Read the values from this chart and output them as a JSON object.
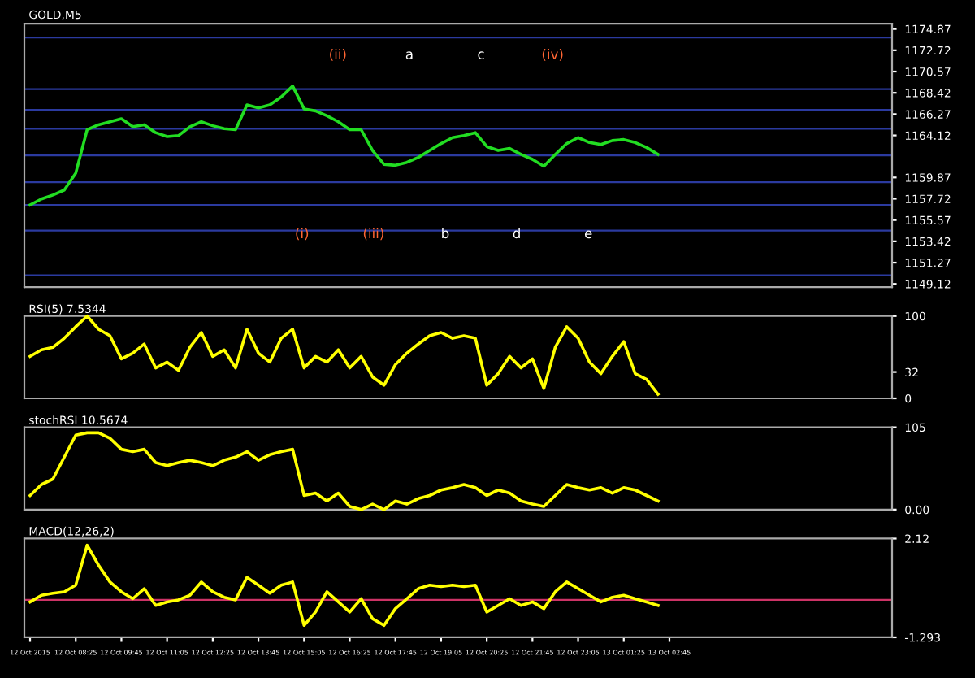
{
  "chart_data": [
    {
      "type": "line",
      "title": "GOLD,M5",
      "categories": [
        null,
        null,
        null,
        null,
        null,
        null,
        null,
        null,
        null,
        null,
        null,
        null,
        null,
        null,
        null,
        null,
        null,
        null,
        null,
        null,
        null,
        null,
        null,
        null,
        null,
        null,
        null,
        null,
        null,
        null,
        null,
        null,
        null,
        null,
        null,
        null,
        null,
        null,
        null,
        null,
        null,
        null,
        null,
        null,
        null,
        null,
        null,
        null,
        null,
        null,
        null,
        null,
        null,
        null,
        null,
        null,
        null,
        null,
        null,
        null,
        null,
        null,
        null,
        null,
        null,
        null,
        null,
        null,
        null,
        null,
        null,
        null,
        null,
        null,
        null,
        null
      ],
      "series": [
        {
          "color": "#22dd22",
          "values": [
            1157.1,
            1157.7,
            1158.1,
            1158.6,
            1160.3,
            1164.7,
            1165.2,
            1165.5,
            1165.8,
            1165.0,
            1165.2,
            1164.4,
            1164.0,
            1164.1,
            1165.0,
            1165.5,
            1165.1,
            1164.8,
            1164.7,
            1167.2,
            1166.9,
            1167.2,
            1168.0,
            1169.1,
            1166.8,
            1166.6,
            1166.1,
            1165.5,
            1164.7,
            1164.7,
            1162.6,
            1161.2,
            1161.1,
            1161.4,
            1161.9,
            1162.6,
            1163.3,
            1163.9,
            1164.1,
            1164.4,
            1163.0,
            1162.6,
            1162.8,
            1162.2,
            1161.7,
            1161.0,
            1162.2,
            1163.3,
            1163.9,
            1163.4,
            1163.2,
            1163.6,
            1163.7,
            1163.4,
            1162.9,
            1162.2,
            null,
            null,
            null,
            null,
            null,
            null,
            null,
            null,
            null,
            null,
            null,
            null,
            null,
            null,
            null,
            null,
            null,
            null,
            null,
            null
          ]
        }
      ],
      "ylim": [
        1148.8,
        1175.4
      ],
      "yticks": [
        1174.87,
        1172.72,
        1170.57,
        1168.42,
        1166.27,
        1164.12,
        1159.87,
        1157.72,
        1155.57,
        1153.42,
        1151.27,
        1149.12
      ],
      "ref_lines": [
        {
          "axis": "y",
          "value": 1174.0,
          "color": "#2b3a9f"
        },
        {
          "axis": "y",
          "value": 1168.8,
          "color": "#2b3a9f"
        },
        {
          "axis": "y",
          "value": 1166.7,
          "color": "#2b3a9f"
        },
        {
          "axis": "y",
          "value": 1164.8,
          "color": "#2b3a9f"
        },
        {
          "axis": "y",
          "value": 1162.1,
          "color": "#2b3a9f"
        },
        {
          "axis": "y",
          "value": 1159.4,
          "color": "#2b3a9f"
        },
        {
          "axis": "y",
          "value": 1157.1,
          "color": "#2b3a9f"
        },
        {
          "axis": "y",
          "value": 1154.5,
          "color": "#2b3a9f"
        },
        {
          "axis": "y",
          "value": 1150.0,
          "color": "#2b3a9f"
        }
      ],
      "annotations": [
        "(i)",
        "(ii)",
        "(iii)",
        "a",
        "b",
        "c",
        "d",
        "(iv)",
        "e"
      ],
      "grid": false,
      "tick_labels": "y"
    },
    {
      "type": "line",
      "title": "RSI(5) 7.5344",
      "categories": [
        null,
        null,
        null,
        null,
        null,
        null,
        null,
        null,
        null,
        null,
        null,
        null,
        null,
        null,
        null,
        null,
        null,
        null,
        null,
        null,
        null,
        null,
        null,
        null,
        null,
        null,
        null,
        null,
        null,
        null,
        null,
        null,
        null,
        null,
        null,
        null,
        null,
        null,
        null,
        null,
        null,
        null,
        null,
        null,
        null,
        null,
        null,
        null,
        null,
        null,
        null,
        null,
        null,
        null,
        null,
        null,
        null,
        null,
        null,
        null,
        null,
        null,
        null,
        null,
        null,
        null,
        null,
        null,
        null,
        null,
        null,
        null,
        null,
        null,
        null,
        null
      ],
      "series": [
        {
          "color": "#ffff00",
          "values": [
            51,
            59,
            62,
            73,
            87,
            100,
            84,
            76,
            48,
            55,
            66,
            37,
            44,
            34,
            62,
            80,
            51,
            59,
            37,
            84,
            55,
            44,
            73,
            84,
            37,
            51,
            44,
            59,
            37,
            51,
            26,
            16,
            41,
            55,
            66,
            76,
            80,
            73,
            76,
            73,
            16,
            30,
            51,
            37,
            48,
            12,
            62,
            87,
            73,
            44,
            30,
            51,
            69,
            30,
            23,
            5,
            null,
            null,
            null,
            null,
            null,
            null,
            null,
            null,
            null,
            null,
            null,
            null,
            null,
            null,
            null,
            null,
            null,
            null,
            null,
            null
          ]
        }
      ],
      "ylim": [
        0,
        100
      ],
      "yticks": [
        0,
        32,
        100
      ],
      "grid": false,
      "tick_labels": "y"
    },
    {
      "type": "line",
      "title": "stochRSI 10.5674",
      "categories": [
        null,
        null,
        null,
        null,
        null,
        null,
        null,
        null,
        null,
        null,
        null,
        null,
        null,
        null,
        null,
        null,
        null,
        null,
        null,
        null,
        null,
        null,
        null,
        null,
        null,
        null,
        null,
        null,
        null,
        null,
        null,
        null,
        null,
        null,
        null,
        null,
        null,
        null,
        null,
        null,
        null,
        null,
        null,
        null,
        null,
        null,
        null,
        null,
        null,
        null,
        null,
        null,
        null,
        null,
        null,
        null,
        null,
        null,
        null,
        null,
        null,
        null,
        null,
        null,
        null,
        null,
        null,
        null,
        null,
        null,
        null,
        null,
        null,
        null,
        null,
        null
      ],
      "series": [
        {
          "color": "#ffff00",
          "values": [
            18,
            32,
            39,
            67,
            95,
            98,
            98,
            91,
            77,
            74,
            77,
            60,
            56,
            60,
            63,
            60,
            56,
            63,
            67,
            74,
            63,
            70,
            74,
            77,
            18,
            21,
            11,
            21,
            4,
            0,
            7,
            0,
            11,
            7,
            14,
            18,
            25,
            28,
            32,
            28,
            18,
            25,
            21,
            11,
            7,
            4,
            18,
            32,
            28,
            25,
            28,
            21,
            28,
            25,
            18,
            11,
            null,
            null,
            null,
            null,
            null,
            null,
            null,
            null,
            null,
            null,
            null,
            null,
            null,
            null,
            null,
            null,
            null,
            null,
            null,
            null
          ]
        }
      ],
      "ylim": [
        0,
        105
      ],
      "yticks": [
        {
          "value": 0,
          "label": "0.00"
        },
        105
      ],
      "grid": false,
      "tick_labels": "y"
    },
    {
      "type": "line",
      "title": "MACD(12,26,2)",
      "categories": [
        "12 Oct 2015",
        null,
        null,
        null,
        "12 Oct 08:25",
        null,
        null,
        null,
        "12 Oct 09:45",
        null,
        null,
        null,
        "12 Oct 11:05",
        null,
        null,
        null,
        "12 Oct 12:25",
        null,
        null,
        null,
        "12 Oct 13:45",
        null,
        null,
        null,
        "12 Oct 15:05",
        null,
        null,
        null,
        "12 Oct 16:25",
        null,
        null,
        null,
        "12 Oct 17:45",
        null,
        null,
        null,
        "12 Oct 19:05",
        null,
        null,
        null,
        "12 Oct 20:25",
        null,
        null,
        null,
        "12 Oct 21:45",
        null,
        null,
        null,
        "12 Oct 23:05",
        null,
        null,
        null,
        "13 Oct 01:25",
        null,
        null,
        null,
        "13 Oct 02:45",
        null,
        null,
        null,
        null,
        null,
        null,
        null,
        null,
        null,
        null,
        null,
        null,
        null,
        null,
        null,
        null,
        null,
        null,
        null
      ],
      "series": [
        {
          "color": "#ffff00",
          "values": [
            -0.07,
            0.16,
            0.23,
            0.28,
            0.51,
            1.89,
            1.2,
            0.62,
            0.28,
            0.04,
            0.39,
            -0.19,
            -0.07,
            0.0,
            0.16,
            0.62,
            0.28,
            0.09,
            0.0,
            0.78,
            0.51,
            0.23,
            0.51,
            0.62,
            -0.88,
            -0.42,
            0.28,
            -0.07,
            -0.42,
            0.04,
            -0.65,
            -0.88,
            -0.3,
            0.04,
            0.39,
            0.51,
            0.46,
            0.51,
            0.46,
            0.51,
            -0.42,
            -0.19,
            0.04,
            -0.19,
            -0.07,
            -0.3,
            0.28,
            0.62,
            0.39,
            0.16,
            -0.07,
            0.09,
            0.16,
            0.04,
            -0.07,
            -0.19,
            null,
            null,
            null,
            null,
            null,
            null,
            null,
            null,
            null,
            null,
            null,
            null,
            null,
            null,
            null,
            null,
            null,
            null,
            null,
            null
          ]
        }
      ],
      "ylim": [
        -1.293,
        2.12
      ],
      "yticks": [
        -1.293,
        2.12
      ],
      "ref_lines": [
        {
          "axis": "y",
          "value": 0,
          "color": "#cc3366"
        }
      ],
      "grid": false
    }
  ]
}
